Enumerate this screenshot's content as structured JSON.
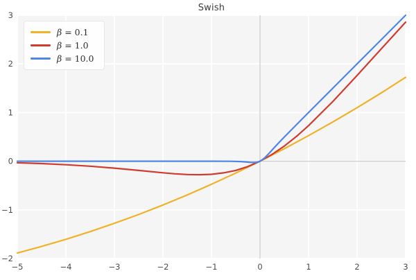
{
  "chart_data": {
    "type": "line",
    "title": "Swish",
    "xlabel": "",
    "ylabel": "",
    "xlim": [
      -5,
      3
    ],
    "ylim": [
      -2,
      3
    ],
    "grid": true,
    "legend_position": "upper left",
    "xticks": [
      {
        "v": -5,
        "label": "−5"
      },
      {
        "v": -4,
        "label": "−4"
      },
      {
        "v": -3,
        "label": "−3"
      },
      {
        "v": -2,
        "label": "−2"
      },
      {
        "v": -1,
        "label": "−1"
      },
      {
        "v": 0,
        "label": "0"
      },
      {
        "v": 1,
        "label": "1"
      },
      {
        "v": 2,
        "label": "2"
      },
      {
        "v": 3,
        "label": "3"
      }
    ],
    "yticks": [
      {
        "v": -2,
        "label": "−2"
      },
      {
        "v": -1,
        "label": "−1"
      },
      {
        "v": 0,
        "label": "0"
      },
      {
        "v": 1,
        "label": "1"
      },
      {
        "v": 2,
        "label": "2"
      },
      {
        "v": 3,
        "label": "3"
      }
    ],
    "series": [
      {
        "name": "β = 0.1",
        "color": "#f0b228",
        "points": [
          [
            -5,
            -1.888
          ],
          [
            -4.5,
            -1.752
          ],
          [
            -4,
            -1.605
          ],
          [
            -3.5,
            -1.447
          ],
          [
            -3,
            -1.277
          ],
          [
            -2.5,
            -1.095
          ],
          [
            -2,
            -0.9
          ],
          [
            -1.5,
            -0.694
          ],
          [
            -1,
            -0.475
          ],
          [
            -0.5,
            -0.244
          ],
          [
            0,
            0
          ],
          [
            0.5,
            0.256
          ],
          [
            1,
            0.525
          ],
          [
            1.5,
            0.806
          ],
          [
            2,
            1.1
          ],
          [
            2.5,
            1.405
          ],
          [
            3,
            1.723
          ]
        ]
      },
      {
        "name": "β = 1.0",
        "color": "#cf3b2e",
        "points": [
          [
            -5,
            -0.033
          ],
          [
            -4.5,
            -0.049
          ],
          [
            -4,
            -0.072
          ],
          [
            -3.5,
            -0.103
          ],
          [
            -3,
            -0.142
          ],
          [
            -2.5,
            -0.19
          ],
          [
            -2,
            -0.238
          ],
          [
            -1.75,
            -0.259
          ],
          [
            -1.5,
            -0.274
          ],
          [
            -1.25,
            -0.278
          ],
          [
            -1,
            -0.269
          ],
          [
            -0.75,
            -0.239
          ],
          [
            -0.5,
            -0.189
          ],
          [
            -0.25,
            -0.109
          ],
          [
            0,
            0
          ],
          [
            0.25,
            0.141
          ],
          [
            0.5,
            0.311
          ],
          [
            0.75,
            0.509
          ],
          [
            1,
            0.731
          ],
          [
            1.5,
            1.226
          ],
          [
            2,
            1.762
          ],
          [
            2.5,
            2.31
          ],
          [
            3,
            2.858
          ]
        ]
      },
      {
        "name": "β = 10.0",
        "color": "#4e86e8",
        "points": [
          [
            -5,
            0
          ],
          [
            -4,
            0
          ],
          [
            -3,
            0
          ],
          [
            -2,
            0
          ],
          [
            -1,
            0
          ],
          [
            -0.6,
            -0.001
          ],
          [
            -0.4,
            -0.007
          ],
          [
            -0.3,
            -0.014
          ],
          [
            -0.2,
            -0.024
          ],
          [
            -0.1,
            -0.027
          ],
          [
            -0.05,
            -0.019
          ],
          [
            0,
            0
          ],
          [
            0.05,
            0.031
          ],
          [
            0.1,
            0.073
          ],
          [
            0.2,
            0.176
          ],
          [
            0.3,
            0.286
          ],
          [
            0.4,
            0.393
          ],
          [
            0.5,
            0.497
          ],
          [
            0.75,
            0.75
          ],
          [
            1,
            1
          ],
          [
            1.5,
            1.5
          ],
          [
            2,
            2
          ],
          [
            2.5,
            2.5
          ],
          [
            3,
            3
          ]
        ]
      }
    ],
    "colors": {
      "axes_background": "#f5f5f6",
      "grid_line": "#ffffff",
      "zero_line": "#cbcbd0",
      "tick_text": "#4b4b4b",
      "title_text": "#3a3a3a",
      "legend_text": "#2e2e2e"
    }
  }
}
